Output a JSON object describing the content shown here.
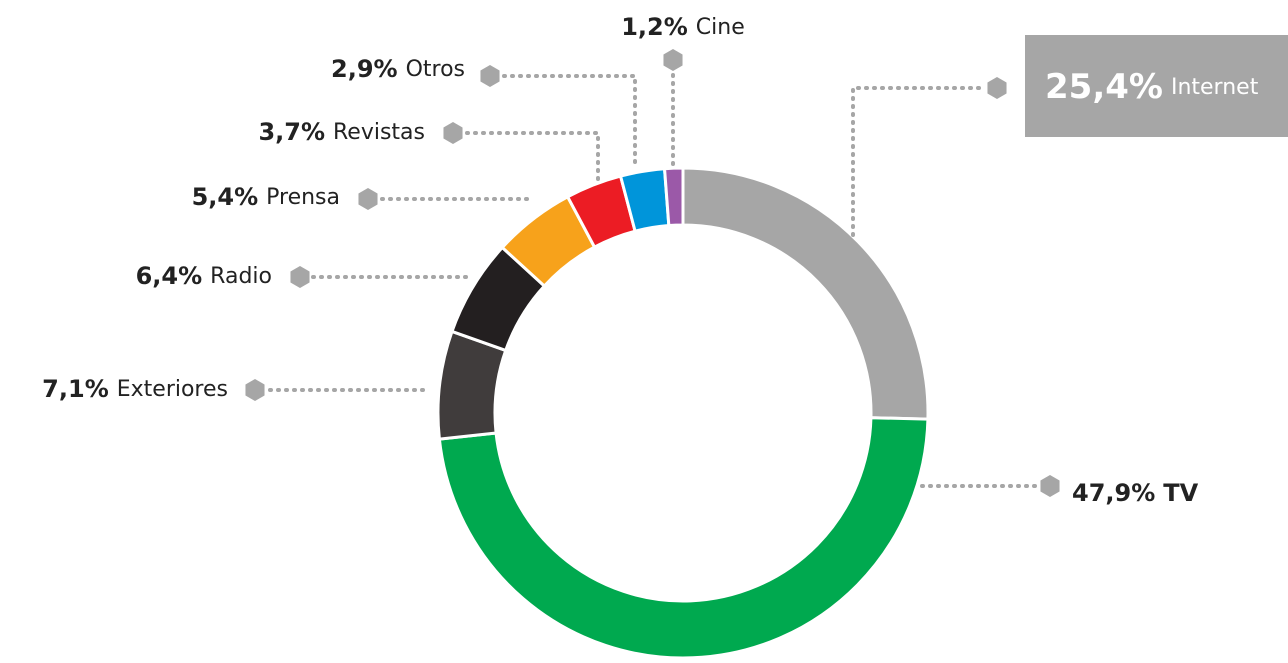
{
  "chart_data": {
    "type": "donut",
    "categories": [
      "Internet",
      "TV",
      "Exteriores",
      "Radio",
      "Prensa",
      "Revistas",
      "Otros",
      "Cine"
    ],
    "values": [
      25.4,
      47.9,
      7.1,
      6.4,
      5.4,
      3.7,
      2.9,
      1.2
    ],
    "value_labels": [
      "25,4%",
      "47,9%",
      "7,1%",
      "6,4%",
      "5,4%",
      "3,7%",
      "2,9%",
      "1,2%"
    ],
    "colors": [
      "#a6a6a6",
      "#00a94f",
      "#403c3c",
      "#231f20",
      "#f7a21b",
      "#ec1c24",
      "#0095da",
      "#9b59a8"
    ]
  }
}
